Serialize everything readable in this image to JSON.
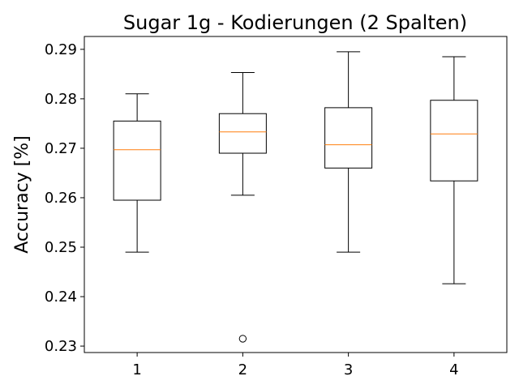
{
  "chart_data": {
    "type": "boxplot",
    "title": "Sugar 1g - Kodierungen (2 Spalten)",
    "xlabel": "",
    "ylabel": "Accuracy [%]",
    "categories": [
      "1",
      "2",
      "3",
      "4"
    ],
    "ylim": [
      0.2287,
      0.2926
    ],
    "yticks": [
      0.23,
      0.24,
      0.25,
      0.26,
      0.27,
      0.28,
      0.29
    ],
    "ytick_labels": [
      "0.23",
      "0.24",
      "0.25",
      "0.26",
      "0.27",
      "0.28",
      "0.29"
    ],
    "grid": false,
    "colors": {
      "box": "#000000",
      "median": "#ff7f0e",
      "flier": "#000000"
    },
    "boxes": [
      {
        "category": "1",
        "whisker_low": 0.249,
        "q1": 0.2595,
        "median": 0.2697,
        "q3": 0.2755,
        "whisker_high": 0.281,
        "fliers": []
      },
      {
        "category": "2",
        "whisker_low": 0.2605,
        "q1": 0.269,
        "median": 0.2733,
        "q3": 0.277,
        "whisker_high": 0.2853,
        "fliers": [
          0.2315
        ]
      },
      {
        "category": "3",
        "whisker_low": 0.249,
        "q1": 0.266,
        "median": 0.2707,
        "q3": 0.2782,
        "whisker_high": 0.2895,
        "fliers": []
      },
      {
        "category": "4",
        "whisker_low": 0.2426,
        "q1": 0.2634,
        "median": 0.2729,
        "q3": 0.2797,
        "whisker_high": 0.2885,
        "fliers": []
      }
    ]
  }
}
